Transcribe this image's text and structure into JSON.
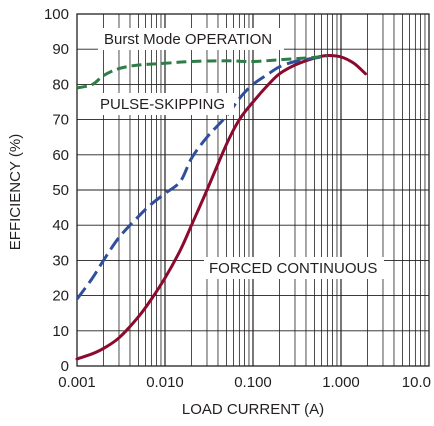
{
  "chart_data": {
    "type": "line",
    "title": "",
    "xlabel": "LOAD CURRENT (A)",
    "ylabel": "EFFICIENCY (%)",
    "xscale": "log",
    "xlim": [
      0.001,
      10
    ],
    "ylim": [
      0,
      100
    ],
    "grid": true,
    "x_tick_labels": [
      "0.001",
      "0.010",
      "0.100",
      "1.000",
      "10.0"
    ],
    "y_tick_labels": [
      "0",
      "10",
      "20",
      "30",
      "40",
      "50",
      "60",
      "70",
      "80",
      "90",
      "100"
    ],
    "colors": {
      "burst": "#2e7d46",
      "pulse": "#2f4f9a",
      "forced": "#8b0a2e",
      "grid": "#231f20"
    },
    "series": [
      {
        "name": "Burst Mode OPERATION",
        "style": "dashed",
        "x": [
          0.001,
          0.0015,
          0.002,
          0.003,
          0.005,
          0.01,
          0.02,
          0.05,
          0.1,
          0.2,
          0.4,
          0.7
        ],
        "y": [
          79,
          80,
          82.5,
          84.5,
          85.5,
          86,
          86.5,
          86.7,
          86.5,
          87,
          87.5,
          88
        ]
      },
      {
        "name": "PULSE-SKIPPING",
        "style": "dashed",
        "x": [
          0.001,
          0.0015,
          0.002,
          0.003,
          0.005,
          0.007,
          0.01,
          0.015,
          0.02,
          0.03,
          0.05,
          0.07,
          0.1,
          0.15,
          0.2,
          0.3,
          0.5,
          0.7
        ],
        "y": [
          19,
          25,
          30,
          36.5,
          42.5,
          46,
          49,
          52.5,
          59,
          65,
          71,
          76,
          80,
          83,
          85,
          86.5,
          87.5,
          88
        ]
      },
      {
        "name": "FORCED CONTINUOUS",
        "style": "solid",
        "x": [
          0.001,
          0.0015,
          0.002,
          0.003,
          0.005,
          0.007,
          0.01,
          0.015,
          0.02,
          0.03,
          0.05,
          0.07,
          0.1,
          0.15,
          0.2,
          0.3,
          0.5,
          0.7,
          1.0,
          1.4,
          1.9
        ],
        "y": [
          2,
          3.5,
          5,
          8,
          14,
          19,
          25,
          33,
          40,
          50,
          63,
          70,
          75,
          80,
          83,
          85.5,
          87.5,
          88.2,
          87.8,
          86,
          83
        ]
      }
    ],
    "annotations": [
      "Burst Mode OPERATION",
      "PULSE-SKIPPING",
      "FORCED CONTINUOUS"
    ]
  }
}
